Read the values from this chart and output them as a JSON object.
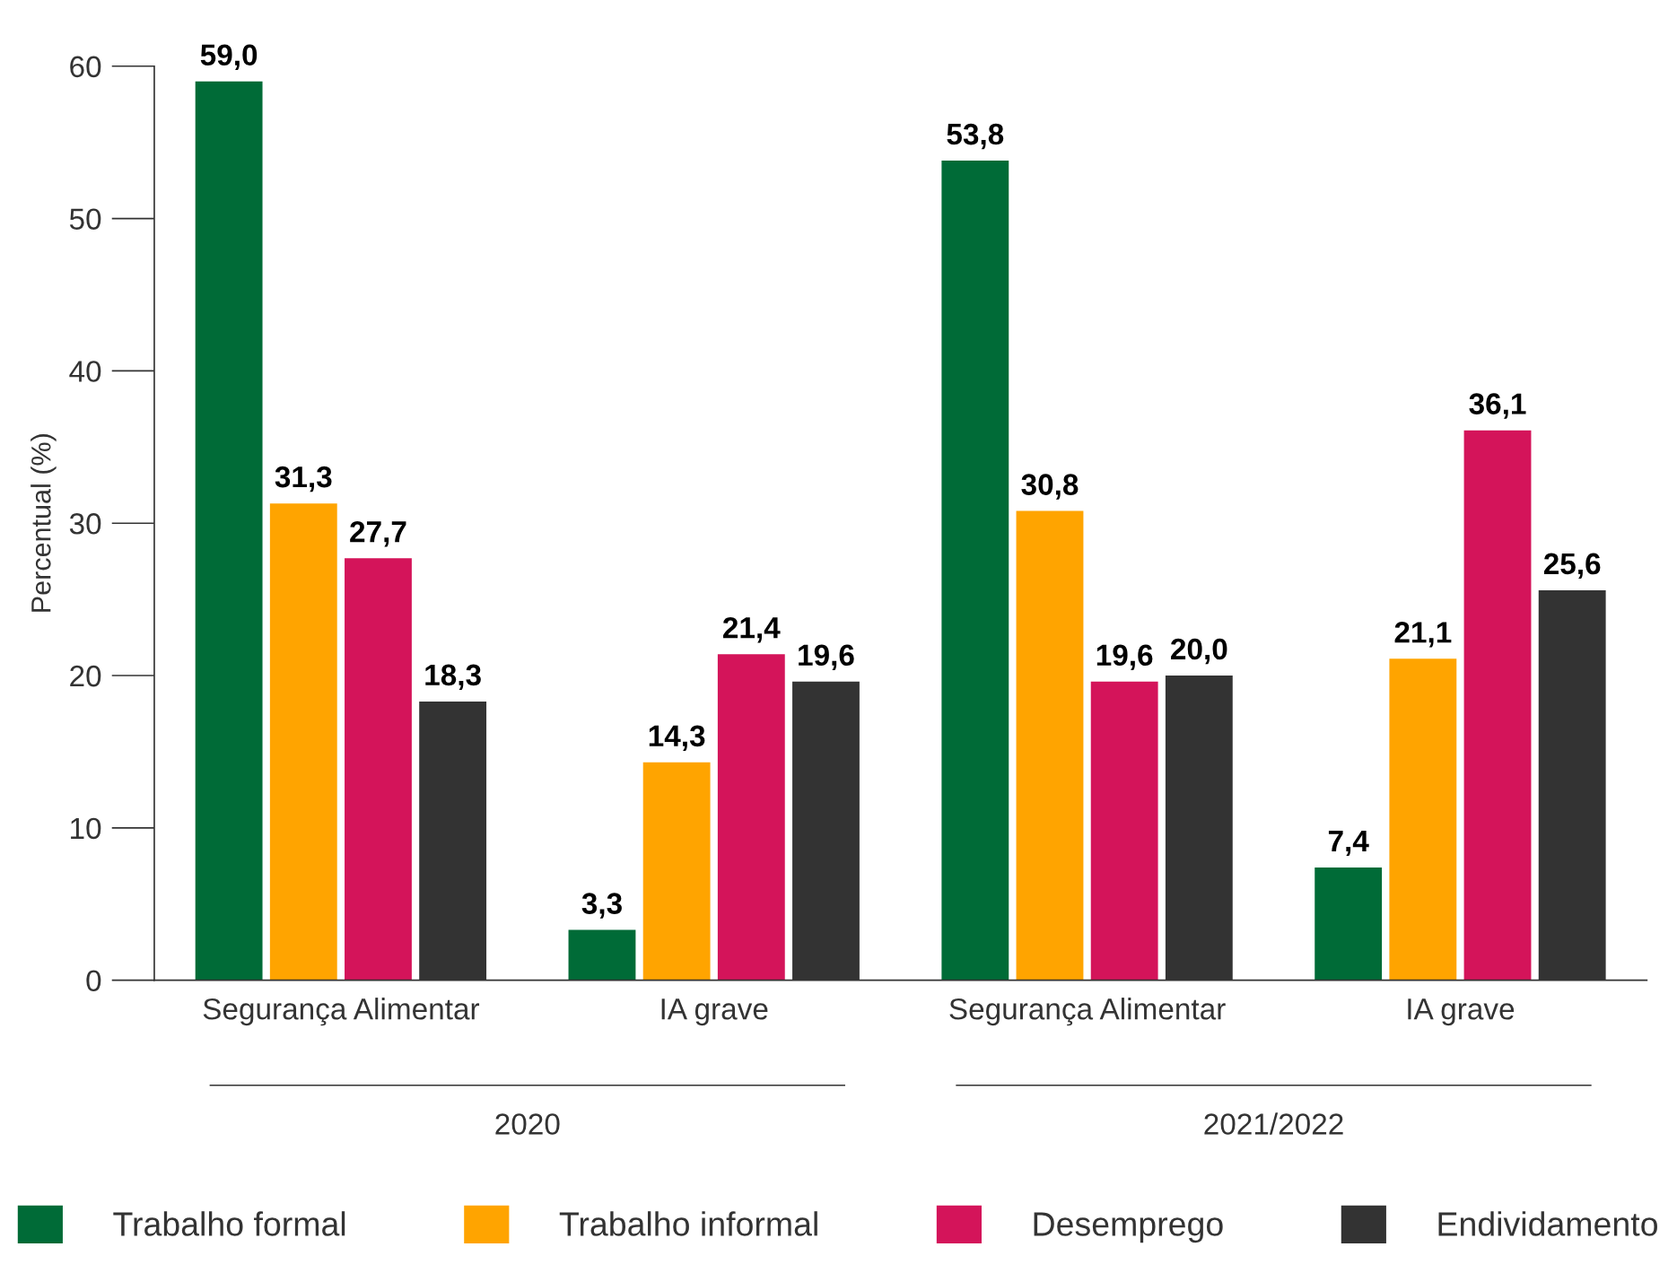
{
  "chart_data": {
    "type": "bar",
    "ylabel": "Percentual (%)",
    "categories": [
      "Segurança Alimentar",
      "IA grave",
      "Segurança Alimentar",
      "IA grave"
    ],
    "series": [
      {
        "name": "Trabalho formal",
        "color": "#006b37",
        "values": [
          59.0,
          3.3,
          53.8,
          7.4
        ],
        "value_labels": [
          "59,0",
          "3,3",
          "53,8",
          "7,4"
        ]
      },
      {
        "name": "Trabalho informal",
        "color": "#ffa400",
        "values": [
          31.3,
          14.3,
          30.8,
          21.1
        ],
        "value_labels": [
          "31,3",
          "14,3",
          "30,8",
          "21,1"
        ]
      },
      {
        "name": "Desemprego",
        "color": "#d4145a",
        "values": [
          27.7,
          21.4,
          19.6,
          36.1
        ],
        "value_labels": [
          "27,7",
          "21,4",
          "19,6",
          "36,1"
        ]
      },
      {
        "name": "Endividamento",
        "color": "#333333",
        "values": [
          18.3,
          19.6,
          20.0,
          25.6
        ],
        "value_labels": [
          "18,3",
          "19,6",
          "20,0",
          "25,6"
        ]
      }
    ],
    "annotations": [
      "2020",
      "2021/2022"
    ],
    "ylim": [
      0,
      60
    ],
    "yticks": [
      0,
      10,
      20,
      30,
      40,
      50,
      60
    ],
    "grid": false,
    "legend": "bottom"
  }
}
